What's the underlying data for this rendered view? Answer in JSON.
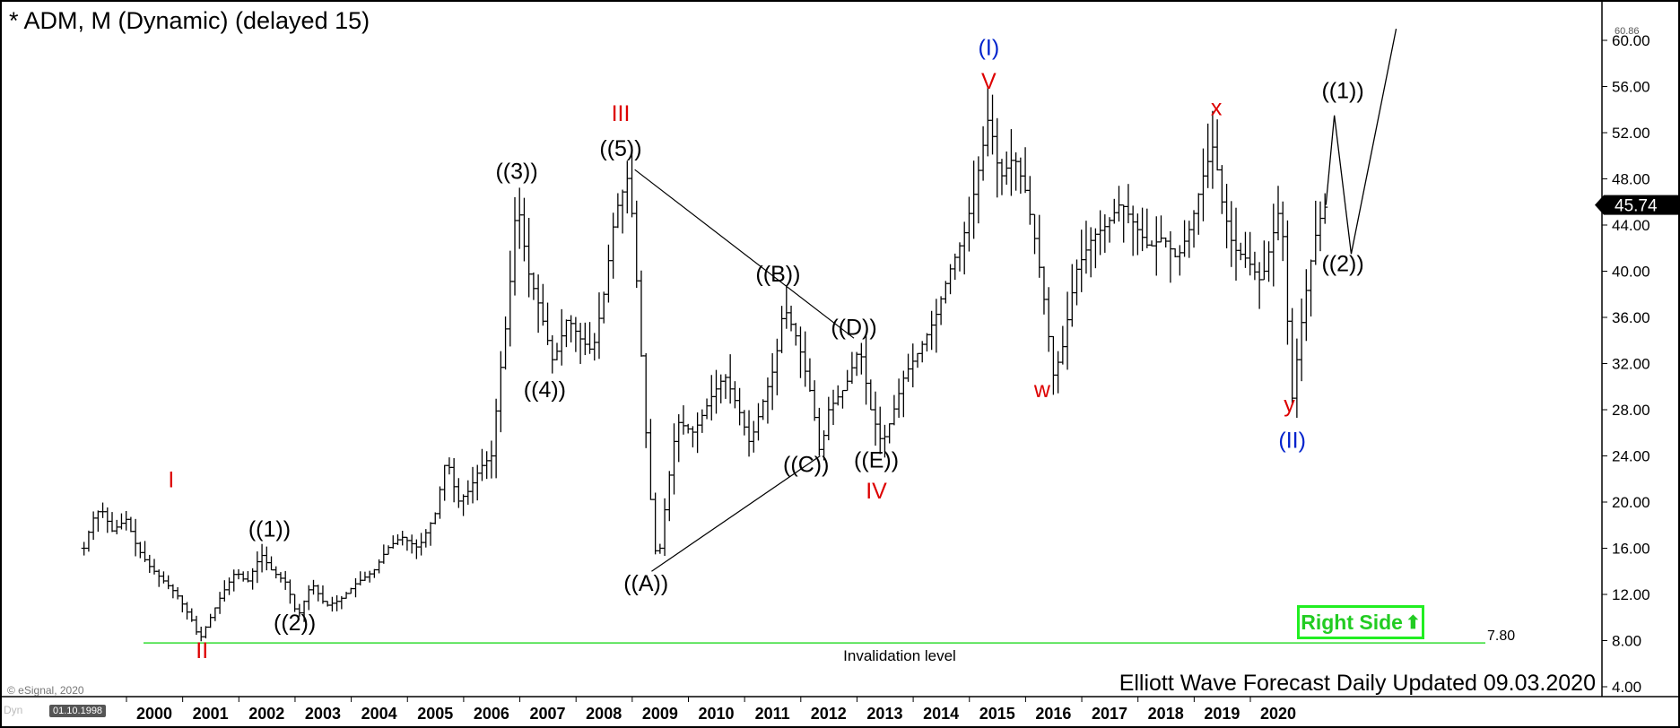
{
  "title": "* ADM, M (Dynamic) (delayed 15)",
  "footer_text": "Elliott Wave Forecast Daily Updated 09.03.2020",
  "copyright": "© eSignal, 2020",
  "dyn_label": "Dyn",
  "date_box": "01.10.1998",
  "badge": {
    "label": "Right Side",
    "icon": "up-arrow-icon",
    "color": "#22ee22"
  },
  "chart_data": {
    "type": "ohlc",
    "interval": "monthly",
    "ylim": [
      4,
      60.86
    ],
    "y_ticks": [
      "4.00",
      "8.00",
      "12.00",
      "16.00",
      "20.00",
      "24.00",
      "28.00",
      "32.00",
      "36.00",
      "40.00",
      "44.00",
      "48.00",
      "52.00",
      "56.00",
      "60.00"
    ],
    "top_price_label": "60.86",
    "x_ticks": [
      "2000",
      "2001",
      "2002",
      "2003",
      "2004",
      "2005",
      "2006",
      "2007",
      "2008",
      "2009",
      "2010",
      "2011",
      "2012",
      "2013",
      "2014",
      "2015",
      "2016",
      "2017",
      "2018",
      "2019",
      "2020"
    ],
    "x_range": [
      1998.75,
      2026.4
    ],
    "current_price": {
      "value": 45.74,
      "label": "45.74"
    },
    "invalidation": {
      "value": 7.8,
      "label": "7.80",
      "text": "Invalidation level",
      "color": "#33dd33"
    },
    "price_path": [
      [
        1998.75,
        16
      ],
      [
        1998.9,
        18.5
      ],
      [
        1999.05,
        19.5
      ],
      [
        1999.25,
        17.5
      ],
      [
        1999.5,
        18.5
      ],
      [
        1999.7,
        16
      ],
      [
        1999.9,
        14.5
      ],
      [
        2000.1,
        13.5
      ],
      [
        2000.4,
        12
      ],
      [
        2000.7,
        9.5
      ],
      [
        2000.8,
        8
      ],
      [
        2000.95,
        9.5
      ],
      [
        2001.2,
        12
      ],
      [
        2001.45,
        14
      ],
      [
        2001.65,
        13
      ],
      [
        2001.9,
        15.5
      ],
      [
        2002.1,
        14
      ],
      [
        2002.35,
        13
      ],
      [
        2002.55,
        10
      ],
      [
        2002.8,
        13
      ],
      [
        2003.05,
        11
      ],
      [
        2003.3,
        11.5
      ],
      [
        2003.6,
        13
      ],
      [
        2003.9,
        14
      ],
      [
        2004.15,
        16
      ],
      [
        2004.4,
        17
      ],
      [
        2004.7,
        16
      ],
      [
        2005.0,
        19
      ],
      [
        2005.2,
        24
      ],
      [
        2005.4,
        20
      ],
      [
        2005.6,
        21
      ],
      [
        2005.8,
        23
      ],
      [
        2006.0,
        24
      ],
      [
        2006.15,
        31
      ],
      [
        2006.3,
        37
      ],
      [
        2006.45,
        46.5
      ],
      [
        2006.65,
        40
      ],
      [
        2006.85,
        37
      ],
      [
        2007.1,
        32
      ],
      [
        2007.35,
        36
      ],
      [
        2007.6,
        34
      ],
      [
        2007.8,
        33
      ],
      [
        2008.0,
        38
      ],
      [
        2008.2,
        45
      ],
      [
        2008.45,
        48.5
      ],
      [
        2008.6,
        38
      ],
      [
        2008.8,
        22
      ],
      [
        2008.95,
        14
      ],
      [
        2009.1,
        20
      ],
      [
        2009.3,
        27
      ],
      [
        2009.6,
        26
      ],
      [
        2009.9,
        29
      ],
      [
        2010.15,
        31
      ],
      [
        2010.4,
        28
      ],
      [
        2010.6,
        25
      ],
      [
        2010.85,
        29
      ],
      [
        2011.05,
        32
      ],
      [
        2011.2,
        37
      ],
      [
        2011.45,
        34
      ],
      [
        2011.7,
        29
      ],
      [
        2011.85,
        24
      ],
      [
        2012.0,
        28
      ],
      [
        2012.3,
        30
      ],
      [
        2012.55,
        33.5
      ],
      [
        2012.75,
        28
      ],
      [
        2012.95,
        25
      ],
      [
        2013.1,
        27
      ],
      [
        2013.35,
        31
      ],
      [
        2013.6,
        33
      ],
      [
        2013.9,
        36
      ],
      [
        2014.15,
        40
      ],
      [
        2014.4,
        43
      ],
      [
        2014.6,
        47
      ],
      [
        2014.85,
        53.5
      ],
      [
        2015.05,
        48
      ],
      [
        2015.3,
        50
      ],
      [
        2015.5,
        47
      ],
      [
        2015.7,
        42
      ],
      [
        2015.85,
        37
      ],
      [
        2016.0,
        31
      ],
      [
        2016.15,
        33
      ],
      [
        2016.4,
        40
      ],
      [
        2016.7,
        43
      ],
      [
        2016.95,
        44
      ],
      [
        2017.2,
        46
      ],
      [
        2017.45,
        44
      ],
      [
        2017.7,
        42
      ],
      [
        2017.95,
        43
      ],
      [
        2018.2,
        41
      ],
      [
        2018.45,
        44
      ],
      [
        2018.65,
        48
      ],
      [
        2018.85,
        51
      ],
      [
        2019.0,
        46
      ],
      [
        2019.2,
        42
      ],
      [
        2019.45,
        41
      ],
      [
        2019.7,
        39
      ],
      [
        2019.9,
        43
      ],
      [
        2020.05,
        46
      ],
      [
        2020.15,
        37
      ],
      [
        2020.25,
        29
      ],
      [
        2020.4,
        35
      ],
      [
        2020.55,
        40
      ],
      [
        2020.7,
        44
      ],
      [
        2020.85,
        45.74
      ]
    ],
    "projection": [
      [
        2020.85,
        45.74
      ],
      [
        2021.0,
        53.5
      ],
      [
        2021.3,
        41.5
      ],
      [
        2022.1,
        61
      ]
    ],
    "wave_lines": [
      [
        [
          2008.55,
          48.8
        ],
        [
          2012.45,
          34.2
        ]
      ],
      [
        [
          2008.85,
          14
        ],
        [
          2011.85,
          24
        ]
      ]
    ],
    "labels": [
      {
        "text": "I",
        "x": 2000.3,
        "y": 21.3,
        "color": "#dd0000"
      },
      {
        "text": "II",
        "x": 2000.85,
        "y": 6.5,
        "color": "#dd0000"
      },
      {
        "text": "((1))",
        "x": 2002.05,
        "y": 17,
        "color": "#000000"
      },
      {
        "text": "((2))",
        "x": 2002.5,
        "y": 8.9,
        "color": "#000000"
      },
      {
        "text": "((3))",
        "x": 2006.45,
        "y": 48,
        "color": "#000000"
      },
      {
        "text": "((4))",
        "x": 2006.95,
        "y": 29.1,
        "color": "#000000"
      },
      {
        "text": "III",
        "x": 2008.3,
        "y": 53,
        "color": "#dd0000"
      },
      {
        "text": "((5))",
        "x": 2008.3,
        "y": 50,
        "color": "#000000"
      },
      {
        "text": "((A))",
        "x": 2008.75,
        "y": 12.3,
        "color": "#000000"
      },
      {
        "text": "((B))",
        "x": 2011.1,
        "y": 39.1,
        "color": "#000000"
      },
      {
        "text": "((C))",
        "x": 2011.6,
        "y": 22.6,
        "color": "#000000"
      },
      {
        "text": "((D))",
        "x": 2012.45,
        "y": 34.5,
        "color": "#000000"
      },
      {
        "text": "((E))",
        "x": 2012.85,
        "y": 23,
        "color": "#000000"
      },
      {
        "text": "IV",
        "x": 2012.85,
        "y": 20.3,
        "color": "#dd0000"
      },
      {
        "text": "(I)",
        "x": 2014.85,
        "y": 58.7,
        "color": "#0022cc"
      },
      {
        "text": "V",
        "x": 2014.85,
        "y": 55.8,
        "color": "#dd0000"
      },
      {
        "text": "w",
        "x": 2015.8,
        "y": 29.1,
        "color": "#dd0000"
      },
      {
        "text": "x",
        "x": 2018.9,
        "y": 53.5,
        "color": "#dd0000"
      },
      {
        "text": "y",
        "x": 2020.2,
        "y": 27.8,
        "color": "#dd0000"
      },
      {
        "text": "(II)",
        "x": 2020.25,
        "y": 24.7,
        "color": "#0022cc"
      },
      {
        "text": "((1))",
        "x": 2021.15,
        "y": 55,
        "color": "#000000"
      },
      {
        "text": "((2))",
        "x": 2021.15,
        "y": 40,
        "color": "#000000"
      }
    ]
  }
}
